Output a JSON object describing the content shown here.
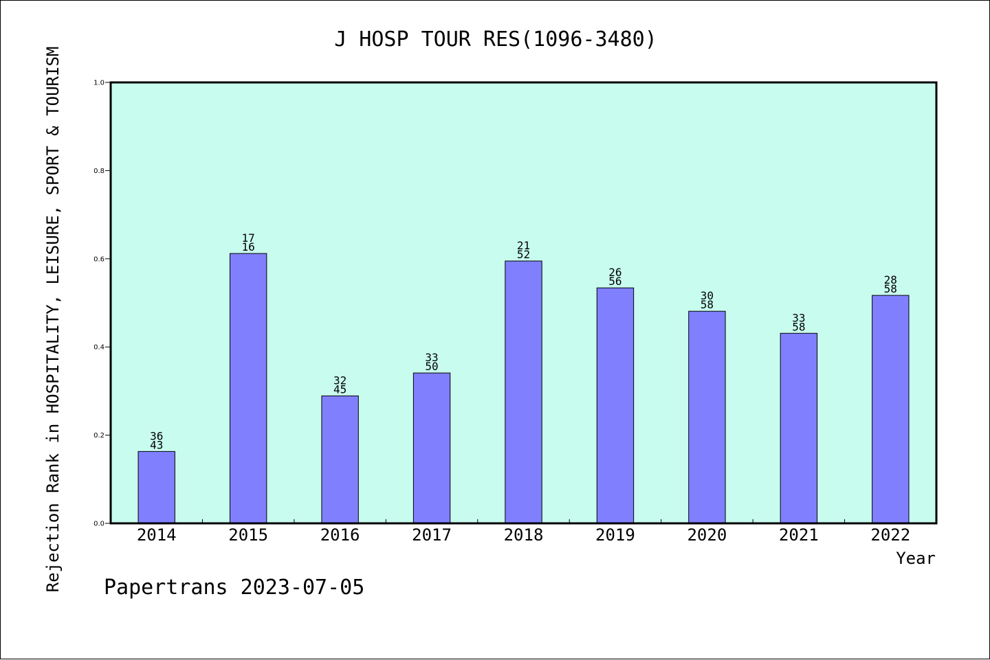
{
  "chart_data": {
    "type": "bar",
    "title": "J HOSP TOUR RES(1096-3480)",
    "xlabel": "Year",
    "ylabel": "Rejection Rank in HOSPITALITY, LEISURE, SPORT & TOURISM",
    "ylim": [
      0,
      1.0
    ],
    "yticks": [
      "0.0",
      "0.2",
      "0.4",
      "0.6",
      "0.8",
      "1.0"
    ],
    "grid": false,
    "categories": [
      "2014",
      "2015",
      "2016",
      "2017",
      "2018",
      "2019",
      "2020",
      "2021",
      "2022"
    ],
    "values": [
      0.163,
      0.612,
      0.289,
      0.341,
      0.595,
      0.534,
      0.481,
      0.431,
      0.517
    ],
    "bar_labels": [
      [
        "36",
        "43"
      ],
      [
        "17",
        "16"
      ],
      [
        "32",
        "45"
      ],
      [
        "33",
        "50"
      ],
      [
        "21",
        "52"
      ],
      [
        "26",
        "56"
      ],
      [
        "30",
        "58"
      ],
      [
        "33",
        "58"
      ],
      [
        "28",
        "58"
      ]
    ],
    "colors": {
      "plot_background": "#c8fcee",
      "bar_fill": "#8080ff",
      "bar_edge": "#000000"
    }
  },
  "footer": "Papertrans 2023-07-05"
}
